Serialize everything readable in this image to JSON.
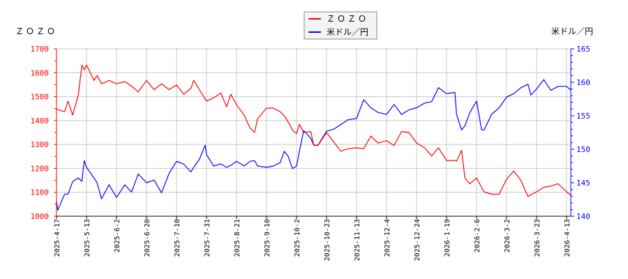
{
  "chart_data": {
    "type": "line",
    "left_axis_title": "ＺＯＺＯ",
    "right_axis_title": "米ドル／円",
    "legend": {
      "placement": "top-center",
      "entries": [
        "ＺＯＺＯ",
        "米ドル／円"
      ]
    },
    "grid": true,
    "colors": {
      "ZOZO": "#ff0000",
      "USDJPY": "#0000ff"
    },
    "y_left": {
      "range": [
        1000,
        1700
      ],
      "ticks": [
        1000,
        1100,
        1200,
        1300,
        1400,
        1500,
        1600,
        1700
      ]
    },
    "y_right": {
      "range": [
        140,
        165
      ],
      "ticks": [
        140,
        145,
        150,
        155,
        160,
        165
      ]
    },
    "x_ticks": [
      "2025-4-17",
      "2025-5-13",
      "2025-6-2",
      "2025-6-20",
      "2025-7-10",
      "2025-7-31",
      "2025-8-21",
      "2025-9-10",
      "2025-10-2",
      "2025-10-23",
      "2025-11-13",
      "2025-12-4",
      "2025-12-24",
      "2026-1-19",
      "2026-2-6",
      "2026-3-2",
      "2026-3-23",
      "2026-4-13"
    ],
    "series": [
      {
        "name": "ＺＯＺＯ",
        "axis": "left",
        "points": [
          [
            "2025-04-17",
            1447
          ],
          [
            "2025-04-18",
            1445
          ],
          [
            "2025-04-24",
            1437
          ],
          [
            "2025-04-27",
            1481
          ],
          [
            "2025-05-01",
            1423
          ],
          [
            "2025-05-06",
            1510
          ],
          [
            "2025-05-09",
            1632
          ],
          [
            "2025-05-11",
            1612
          ],
          [
            "2025-05-13",
            1632
          ],
          [
            "2025-05-18",
            1568
          ],
          [
            "2025-05-20",
            1588
          ],
          [
            "2025-05-23",
            1554
          ],
          [
            "2025-05-28",
            1568
          ],
          [
            "2025-06-02",
            1554
          ],
          [
            "2025-06-07",
            1563
          ],
          [
            "2025-06-11",
            1544
          ],
          [
            "2025-06-15",
            1520
          ],
          [
            "2025-06-20",
            1568
          ],
          [
            "2025-06-25",
            1529
          ],
          [
            "2025-06-30",
            1554
          ],
          [
            "2025-07-05",
            1529
          ],
          [
            "2025-07-10",
            1549
          ],
          [
            "2025-07-15",
            1510
          ],
          [
            "2025-07-20",
            1534
          ],
          [
            "2025-07-22",
            1568
          ],
          [
            "2025-07-26",
            1529
          ],
          [
            "2025-07-30",
            1490
          ],
          [
            "2025-07-31",
            1481
          ],
          [
            "2025-08-05",
            1495
          ],
          [
            "2025-08-10",
            1515
          ],
          [
            "2025-08-14",
            1457
          ],
          [
            "2025-08-17",
            1510
          ],
          [
            "2025-08-21",
            1466
          ],
          [
            "2025-08-26",
            1423
          ],
          [
            "2025-08-30",
            1369
          ],
          [
            "2025-09-02",
            1350
          ],
          [
            "2025-09-04",
            1408
          ],
          [
            "2025-09-10",
            1452
          ],
          [
            "2025-09-15",
            1452
          ],
          [
            "2025-09-20",
            1437
          ],
          [
            "2025-09-23",
            1420
          ],
          [
            "2025-09-26",
            1393
          ],
          [
            "2025-09-29",
            1360
          ],
          [
            "2025-10-02",
            1345
          ],
          [
            "2025-10-04",
            1384
          ],
          [
            "2025-10-07",
            1350
          ],
          [
            "2025-10-12",
            1354
          ],
          [
            "2025-10-14",
            1296
          ],
          [
            "2025-10-17",
            1296
          ],
          [
            "2025-10-23",
            1350
          ],
          [
            "2025-10-28",
            1311
          ],
          [
            "2025-11-02",
            1272
          ],
          [
            "2025-11-07",
            1282
          ],
          [
            "2025-11-13",
            1286
          ],
          [
            "2025-11-18",
            1282
          ],
          [
            "2025-11-23",
            1335
          ],
          [
            "2025-11-28",
            1306
          ],
          [
            "2025-12-04",
            1316
          ],
          [
            "2025-12-09",
            1296
          ],
          [
            "2025-12-14",
            1354
          ],
          [
            "2025-12-19",
            1350
          ],
          [
            "2025-12-24",
            1306
          ],
          [
            "2025-12-31",
            1286
          ],
          [
            "2026-01-06",
            1252
          ],
          [
            "2026-01-12",
            1286
          ],
          [
            "2026-01-19",
            1233
          ],
          [
            "2026-01-24",
            1233
          ],
          [
            "2026-01-25",
            1230
          ],
          [
            "2026-01-28",
            1276
          ],
          [
            "2026-01-30",
            1160
          ],
          [
            "2026-02-02",
            1136
          ],
          [
            "2026-02-06",
            1160
          ],
          [
            "2026-02-10",
            1120
          ],
          [
            "2026-02-12",
            1102
          ],
          [
            "2026-02-18",
            1092
          ],
          [
            "2026-02-24",
            1092
          ],
          [
            "2026-03-02",
            1155
          ],
          [
            "2026-03-07",
            1189
          ],
          [
            "2026-03-12",
            1150
          ],
          [
            "2026-03-17",
            1082
          ],
          [
            "2026-03-19",
            1090
          ],
          [
            "2026-03-23",
            1102
          ],
          [
            "2026-03-28",
            1121
          ],
          [
            "2026-04-02",
            1126
          ],
          [
            "2026-04-07",
            1136
          ],
          [
            "2026-04-13",
            1102
          ],
          [
            "2026-04-16",
            1087
          ]
        ]
      },
      {
        "name": "米ドル／円",
        "axis": "right",
        "points": [
          [
            "2025-04-17",
            142.3
          ],
          [
            "2025-04-18",
            140.9
          ],
          [
            "2025-04-24",
            143.3
          ],
          [
            "2025-04-27",
            143.3
          ],
          [
            "2025-05-01",
            145.2
          ],
          [
            "2025-05-06",
            145.7
          ],
          [
            "2025-05-09",
            145.2
          ],
          [
            "2025-05-11",
            148.3
          ],
          [
            "2025-05-13",
            147.3
          ],
          [
            "2025-05-18",
            145.7
          ],
          [
            "2025-05-20",
            145.0
          ],
          [
            "2025-05-23",
            142.6
          ],
          [
            "2025-05-28",
            144.7
          ],
          [
            "2025-06-02",
            142.8
          ],
          [
            "2025-06-07",
            144.7
          ],
          [
            "2025-06-11",
            143.6
          ],
          [
            "2025-06-15",
            146.3
          ],
          [
            "2025-06-20",
            145.0
          ],
          [
            "2025-06-25",
            145.4
          ],
          [
            "2025-06-30",
            143.5
          ],
          [
            "2025-07-05",
            146.4
          ],
          [
            "2025-07-10",
            148.2
          ],
          [
            "2025-07-15",
            147.8
          ],
          [
            "2025-07-20",
            146.6
          ],
          [
            "2025-07-22",
            147.3
          ],
          [
            "2025-07-26",
            148.5
          ],
          [
            "2025-07-30",
            150.6
          ],
          [
            "2025-07-31",
            149.2
          ],
          [
            "2025-08-05",
            147.5
          ],
          [
            "2025-08-10",
            147.8
          ],
          [
            "2025-08-14",
            147.3
          ],
          [
            "2025-08-17",
            147.6
          ],
          [
            "2025-08-21",
            148.2
          ],
          [
            "2025-08-26",
            147.5
          ],
          [
            "2025-08-30",
            148.2
          ],
          [
            "2025-09-02",
            148.3
          ],
          [
            "2025-09-04",
            147.5
          ],
          [
            "2025-09-10",
            147.3
          ],
          [
            "2025-09-15",
            147.5
          ],
          [
            "2025-09-20",
            148.0
          ],
          [
            "2025-09-23",
            149.7
          ],
          [
            "2025-09-26",
            148.9
          ],
          [
            "2025-09-29",
            147.1
          ],
          [
            "2025-10-02",
            147.5
          ],
          [
            "2025-10-04",
            149.7
          ],
          [
            "2025-10-07",
            152.8
          ],
          [
            "2025-10-12",
            151.6
          ],
          [
            "2025-10-14",
            150.6
          ],
          [
            "2025-10-17",
            150.6
          ],
          [
            "2025-10-23",
            152.7
          ],
          [
            "2025-10-28",
            153.0
          ],
          [
            "2025-11-02",
            153.7
          ],
          [
            "2025-11-07",
            154.4
          ],
          [
            "2025-11-13",
            154.6
          ],
          [
            "2025-11-18",
            157.4
          ],
          [
            "2025-11-23",
            156.2
          ],
          [
            "2025-11-28",
            155.5
          ],
          [
            "2025-12-04",
            155.2
          ],
          [
            "2025-12-09",
            156.7
          ],
          [
            "2025-12-14",
            155.2
          ],
          [
            "2025-12-19",
            155.9
          ],
          [
            "2025-12-24",
            156.2
          ],
          [
            "2025-12-31",
            156.9
          ],
          [
            "2026-01-06",
            157.1
          ],
          [
            "2026-01-12",
            159.2
          ],
          [
            "2026-01-19",
            158.3
          ],
          [
            "2026-01-24",
            158.5
          ],
          [
            "2026-01-25",
            155.2
          ],
          [
            "2026-01-28",
            152.9
          ],
          [
            "2026-01-30",
            153.5
          ],
          [
            "2026-02-02",
            155.5
          ],
          [
            "2026-02-06",
            157.2
          ],
          [
            "2026-02-10",
            152.9
          ],
          [
            "2026-02-12",
            152.9
          ],
          [
            "2026-02-18",
            155.2
          ],
          [
            "2026-02-24",
            156.2
          ],
          [
            "2026-03-02",
            157.8
          ],
          [
            "2026-03-07",
            158.3
          ],
          [
            "2026-03-12",
            159.2
          ],
          [
            "2026-03-17",
            159.7
          ],
          [
            "2026-03-19",
            158.1
          ],
          [
            "2026-03-23",
            159.0
          ],
          [
            "2026-03-28",
            160.4
          ],
          [
            "2026-04-02",
            158.8
          ],
          [
            "2026-04-07",
            159.4
          ],
          [
            "2026-04-13",
            159.4
          ],
          [
            "2026-04-16",
            158.8
          ]
        ]
      }
    ]
  }
}
